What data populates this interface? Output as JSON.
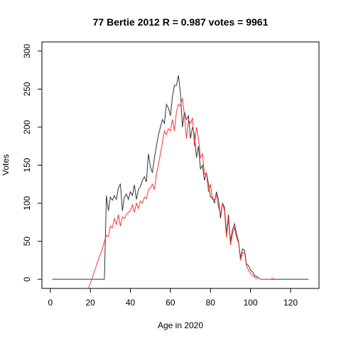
{
  "chart_data": {
    "type": "line",
    "title": "77 Bertie 2012 R = 0.987 votes = 9961",
    "xlabel": "Age in 2020",
    "ylabel": "Votes",
    "xlim": [
      -4.2,
      134.2
    ],
    "ylim": [
      -12,
      312
    ],
    "xticks": [
      0,
      20,
      40,
      60,
      80,
      100,
      120
    ],
    "yticks": [
      0,
      50,
      100,
      150,
      200,
      250,
      300
    ],
    "grid": false,
    "colors": {
      "actual": "#333333",
      "predicted": "#ff3333"
    },
    "series": [
      {
        "key": "actual",
        "color": "#333333",
        "x": [
          1,
          2,
          3,
          4,
          5,
          6,
          7,
          8,
          9,
          10,
          11,
          12,
          13,
          14,
          15,
          16,
          17,
          18,
          19,
          20,
          21,
          22,
          23,
          24,
          25,
          26,
          27,
          28,
          29,
          30,
          31,
          32,
          33,
          34,
          35,
          36,
          37,
          38,
          39,
          40,
          41,
          42,
          43,
          44,
          45,
          46,
          47,
          48,
          49,
          50,
          51,
          52,
          53,
          54,
          55,
          56,
          57,
          58,
          59,
          60,
          61,
          62,
          63,
          64,
          65,
          66,
          67,
          68,
          69,
          70,
          71,
          72,
          73,
          74,
          75,
          76,
          77,
          78,
          79,
          80,
          81,
          82,
          83,
          84,
          85,
          86,
          87,
          88,
          89,
          90,
          91,
          92,
          93,
          94,
          95,
          96,
          97,
          98,
          99,
          100,
          101,
          102,
          103,
          104,
          105,
          106,
          107,
          108,
          109,
          110,
          111,
          112,
          113,
          114,
          115,
          116,
          117,
          118,
          119,
          120,
          121,
          122,
          123,
          124,
          125,
          126,
          127,
          128,
          129
        ],
        "values": [
          0,
          0,
          0,
          0,
          0,
          0,
          0,
          0,
          0,
          0,
          0,
          0,
          0,
          0,
          0,
          0,
          0,
          0,
          0,
          0,
          0,
          0,
          0,
          0,
          0,
          0,
          0,
          110,
          90,
          108,
          104,
          110,
          105,
          120,
          125,
          90,
          108,
          112,
          105,
          115,
          110,
          124,
          105,
          118,
          122,
          130,
          135,
          128,
          165,
          148,
          140,
          160,
          175,
          190,
          200,
          210,
          205,
          230,
          225,
          215,
          240,
          255,
          255,
          268,
          245,
          200,
          220,
          210,
          215,
          185,
          200,
          190,
          160,
          175,
          145,
          150,
          130,
          140,
          125,
          108,
          108,
          100,
          115,
          105,
          80,
          100,
          95,
          60,
          85,
          50,
          65,
          73,
          60,
          50,
          28,
          40,
          38,
          20,
          18,
          12,
          10,
          5,
          4,
          2,
          0,
          0,
          0,
          0,
          0,
          0,
          0,
          0,
          0,
          0,
          0,
          0,
          0,
          0,
          0,
          0,
          0,
          0,
          0,
          0,
          0,
          0,
          0,
          0,
          0
        ]
      },
      {
        "key": "predicted",
        "color": "#ff3333",
        "x": [
          19,
          20,
          21,
          22,
          23,
          24,
          25,
          26,
          27,
          28,
          29,
          30,
          31,
          32,
          33,
          34,
          35,
          36,
          37,
          38,
          39,
          40,
          41,
          42,
          43,
          44,
          45,
          46,
          47,
          48,
          49,
          50,
          51,
          52,
          53,
          54,
          55,
          56,
          57,
          58,
          59,
          60,
          61,
          62,
          63,
          64,
          65,
          66,
          67,
          68,
          69,
          70,
          71,
          72,
          73,
          74,
          75,
          76,
          77,
          78,
          79,
          80,
          81,
          82,
          83,
          84,
          85,
          86,
          87,
          88,
          89,
          90,
          91,
          92,
          93,
          94,
          95,
          96,
          97,
          98,
          99,
          100,
          101,
          102,
          103,
          104,
          105,
          106,
          107,
          108,
          109,
          110,
          111,
          112
        ],
        "values": [
          -12,
          -5,
          2,
          10,
          18,
          26,
          33,
          40,
          50,
          58,
          56,
          70,
          68,
          80,
          72,
          85,
          70,
          82,
          80,
          85,
          88,
          90,
          98,
          88,
          100,
          93,
          103,
          100,
          108,
          106,
          118,
          120,
          125,
          118,
          138,
          150,
          165,
          180,
          195,
          190,
          198,
          195,
          210,
          195,
          220,
          230,
          228,
          238,
          215,
          185,
          210,
          205,
          212,
          175,
          200,
          185,
          160,
          165,
          138,
          140,
          115,
          125,
          105,
          105,
          110,
          95,
          85,
          100,
          90,
          55,
          80,
          45,
          60,
          68,
          55,
          48,
          25,
          35,
          35,
          18,
          12,
          8,
          5,
          3,
          1,
          2,
          0,
          0,
          0,
          0,
          0,
          0,
          1,
          0
        ]
      }
    ]
  }
}
